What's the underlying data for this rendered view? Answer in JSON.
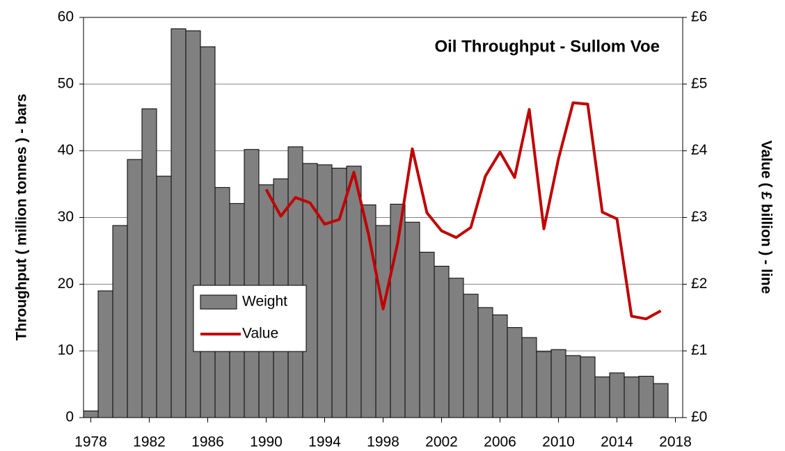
{
  "chart_data": {
    "type": "bar",
    "title": "Oil Throughput - Sullom Voe",
    "y_label": "Throughput ( million tonnes ) - bars",
    "y2_label": "Value ( £ billion ) - line",
    "x": [
      1978,
      1979,
      1980,
      1981,
      1982,
      1983,
      1984,
      1985,
      1986,
      1987,
      1988,
      1989,
      1990,
      1991,
      1992,
      1993,
      1994,
      1995,
      1996,
      1997,
      1998,
      1999,
      2000,
      2001,
      2002,
      2003,
      2004,
      2005,
      2006,
      2007,
      2008,
      2009,
      2010,
      2011,
      2012,
      2013,
      2014,
      2015,
      2016,
      2017
    ],
    "series": [
      {
        "name": "Weight",
        "type": "bar",
        "color": "#808080",
        "values": [
          1,
          19,
          28.8,
          38.7,
          46.3,
          36.2,
          58.3,
          58,
          55.6,
          34.5,
          32.1,
          40.2,
          34.9,
          35.8,
          40.6,
          38.1,
          37.9,
          37.4,
          37.7,
          31.9,
          28.8,
          32,
          29.3,
          24.8,
          22.7,
          20.9,
          18.5,
          16.5,
          15.4,
          13.5,
          12,
          9.9,
          10.2,
          9.3,
          9.1,
          6.1,
          6.7,
          6.1,
          6.2,
          5.1
        ]
      },
      {
        "name": "Value",
        "type": "line",
        "axis": "y2",
        "color": "#c00000",
        "values": [
          null,
          null,
          null,
          null,
          null,
          null,
          null,
          null,
          null,
          null,
          null,
          null,
          3.42,
          3.02,
          3.3,
          3.22,
          2.9,
          2.97,
          3.68,
          2.75,
          1.63,
          2.62,
          4.03,
          3.07,
          2.8,
          2.7,
          2.85,
          3.62,
          3.98,
          3.6,
          4.62,
          2.83,
          3.88,
          4.72,
          4.7,
          3.08,
          2.98,
          1.52,
          1.48,
          1.6
        ]
      }
    ],
    "xlim": [
      1977.5,
      2018.5
    ],
    "xticks": [
      1978,
      1982,
      1986,
      1990,
      1994,
      1998,
      2002,
      2006,
      2010,
      2014,
      2018
    ],
    "ylim": [
      0,
      60
    ],
    "yticks": [
      0,
      10,
      20,
      30,
      40,
      50,
      60
    ],
    "y2lim": [
      0,
      6
    ],
    "y2ticks": [
      {
        "value": 0,
        "label": "£0"
      },
      {
        "value": 1,
        "label": "£1"
      },
      {
        "value": 2,
        "label": "£2"
      },
      {
        "value": 3,
        "label": "£3"
      },
      {
        "value": 4,
        "label": "£4"
      },
      {
        "value": 5,
        "label": "£5"
      },
      {
        "value": 6,
        "label": "£6"
      }
    ],
    "grid": true
  }
}
